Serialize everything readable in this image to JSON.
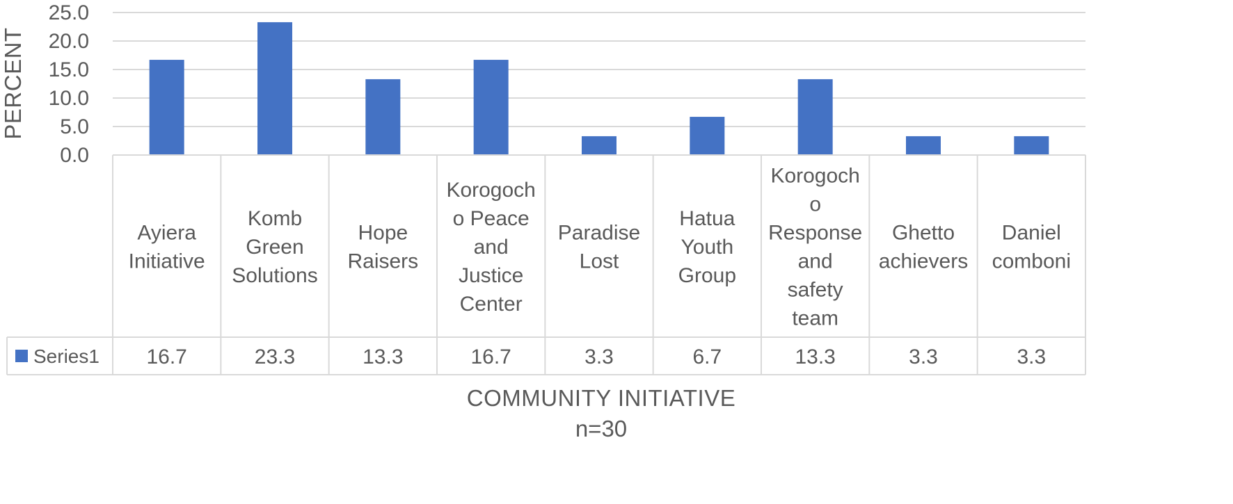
{
  "chart_data": {
    "type": "bar",
    "categories": [
      [
        "Ayiera",
        "Initiative"
      ],
      [
        "Komb",
        "Green",
        "Solutions"
      ],
      [
        "Hope",
        "Raisers"
      ],
      [
        "Korogoch",
        "o Peace",
        "and",
        "Justice",
        "Center"
      ],
      [
        "Paradise",
        "Lost"
      ],
      [
        "Hatua",
        "Youth",
        "Group"
      ],
      [
        "Korogoch",
        "o",
        "Response",
        "and",
        "safety",
        "team"
      ],
      [
        "Ghetto",
        "achievers"
      ],
      [
        "Daniel",
        "comboni"
      ]
    ],
    "series": [
      {
        "name": "Series1",
        "values": [
          16.7,
          23.3,
          13.3,
          16.7,
          3.3,
          6.7,
          13.3,
          3.3,
          3.3
        ],
        "color": "#4472C4"
      }
    ],
    "yticks": [
      "0.0",
      "5.0",
      "10.0",
      "15.0",
      "20.0",
      "25.0"
    ],
    "ylim": [
      0,
      25
    ],
    "ylabel": "PERCENT",
    "xlabel": "COMMUNITY INITIATIVE",
    "subtitle": "n=30",
    "grid": true,
    "legend_placement": "data-table",
    "data_table": true,
    "colors": {
      "bar": "#4472C4",
      "grid": "#d9d9d9",
      "text": "#595959"
    }
  }
}
